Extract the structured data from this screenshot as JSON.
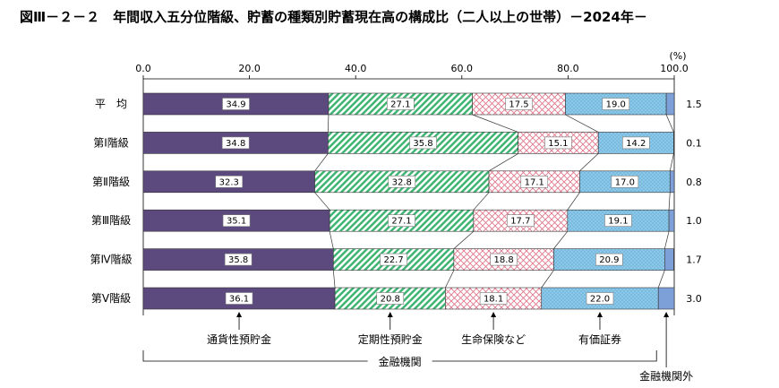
{
  "chart_data": {
    "type": "bar",
    "orientation": "horizontal",
    "stacked": true,
    "title": "図Ⅲ－２－２　年間収入五分位階級、貯蓄の種類別貯蓄現在高の構成比（二人以上の世帯）－2024年－",
    "unit_label": "(%)",
    "xlim": [
      0,
      100
    ],
    "ticks": [
      "0.0",
      "20.0",
      "40.0",
      "60.0",
      "80.0",
      "100.0"
    ],
    "categories": [
      "平　均",
      "第Ⅰ階級",
      "第Ⅱ階級",
      "第Ⅲ階級",
      "第Ⅳ階級",
      "第Ⅴ階級"
    ],
    "series": [
      {
        "name": "通貨性預貯金",
        "values": [
          34.9,
          34.8,
          32.3,
          35.1,
          35.8,
          36.1
        ],
        "color": "#5c4a7f"
      },
      {
        "name": "定期性預貯金",
        "values": [
          27.1,
          35.8,
          32.8,
          27.1,
          22.7,
          20.8
        ],
        "color": "#5cc08a"
      },
      {
        "name": "生命保険など",
        "values": [
          17.5,
          15.1,
          17.1,
          17.7,
          18.8,
          18.1
        ],
        "color": "#e89aa8"
      },
      {
        "name": "有価証券",
        "values": [
          19.0,
          14.2,
          17.0,
          19.1,
          20.9,
          22.0
        ],
        "color": "#8cc8e8"
      },
      {
        "name": "金融機関外",
        "values": [
          1.5,
          0.1,
          0.8,
          1.0,
          1.7,
          3.0
        ],
        "color": "#7ea0d8"
      }
    ],
    "group_label": "金融機関"
  }
}
